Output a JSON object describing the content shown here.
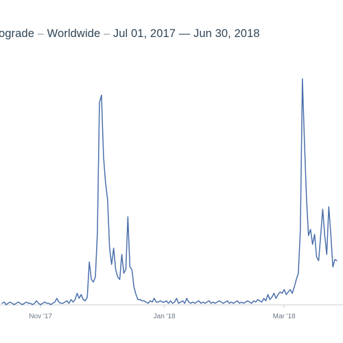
{
  "header": {
    "term": "ograde",
    "sep1": "–",
    "region": "Worldwide",
    "sep2": "–",
    "start": "Jul 01, 2017",
    "dash": "—",
    "end": "Jun 30, 2018"
  },
  "colors": {
    "line": "#4a6fab",
    "axis": "#c9d0d6",
    "title": "#2f4456",
    "tick": "#6b7885"
  },
  "chart_data": {
    "type": "line",
    "title": "ograde – Worldwide – Jul 01, 2017 — Jun 30, 2018",
    "xlabel": "",
    "ylabel": "",
    "grid": false,
    "legend": "none",
    "x_tick_labels": [
      "Nov '17",
      "Jan '18",
      "Mar '18"
    ],
    "x_tick_dates": [
      "2017-11-01",
      "2018-01-01",
      "2018-03-01"
    ],
    "series": [
      {
        "values": [
          [
            "2017-10-13",
            1
          ],
          [
            "2017-10-14",
            2
          ],
          [
            "2017-10-15",
            0
          ],
          [
            "2017-10-16",
            1
          ],
          [
            "2017-10-17",
            2
          ],
          [
            "2017-10-18",
            1
          ],
          [
            "2017-10-19",
            0
          ],
          [
            "2017-10-20",
            1
          ],
          [
            "2017-10-21",
            2
          ],
          [
            "2017-10-22",
            1
          ],
          [
            "2017-10-23",
            0
          ],
          [
            "2017-10-24",
            1
          ],
          [
            "2017-10-25",
            2
          ],
          [
            "2017-10-26",
            1
          ],
          [
            "2017-10-27",
            1
          ],
          [
            "2017-10-28",
            0
          ],
          [
            "2017-10-29",
            1
          ],
          [
            "2017-10-30",
            3
          ],
          [
            "2017-10-31",
            1
          ],
          [
            "2017-11-01",
            0
          ],
          [
            "2017-11-02",
            1
          ],
          [
            "2017-11-03",
            2
          ],
          [
            "2017-11-04",
            1
          ],
          [
            "2017-11-05",
            1
          ],
          [
            "2017-11-06",
            0
          ],
          [
            "2017-11-07",
            1
          ],
          [
            "2017-11-08",
            2
          ],
          [
            "2017-11-09",
            5
          ],
          [
            "2017-11-10",
            2
          ],
          [
            "2017-11-11",
            1
          ],
          [
            "2017-11-12",
            1
          ],
          [
            "2017-11-13",
            2
          ],
          [
            "2017-11-14",
            3
          ],
          [
            "2017-11-15",
            1
          ],
          [
            "2017-11-16",
            4
          ],
          [
            "2017-11-17",
            2
          ],
          [
            "2017-11-18",
            4
          ],
          [
            "2017-11-19",
            9
          ],
          [
            "2017-11-20",
            5
          ],
          [
            "2017-11-21",
            8
          ],
          [
            "2017-11-22",
            4
          ],
          [
            "2017-11-23",
            3
          ],
          [
            "2017-11-24",
            6
          ],
          [
            "2017-11-25",
            34
          ],
          [
            "2017-11-26",
            20
          ],
          [
            "2017-11-27",
            18
          ],
          [
            "2017-11-28",
            22
          ],
          [
            "2017-11-29",
            58
          ],
          [
            "2017-11-30",
            161
          ],
          [
            "2017-12-01",
            167
          ],
          [
            "2017-12-02",
            118
          ],
          [
            "2017-12-03",
            97
          ],
          [
            "2017-12-04",
            84
          ],
          [
            "2017-12-05",
            45
          ],
          [
            "2017-12-06",
            32
          ],
          [
            "2017-12-07",
            45
          ],
          [
            "2017-12-08",
            28
          ],
          [
            "2017-12-09",
            22
          ],
          [
            "2017-12-10",
            20
          ],
          [
            "2017-12-11",
            40
          ],
          [
            "2017-12-12",
            25
          ],
          [
            "2017-12-13",
            28
          ],
          [
            "2017-12-14",
            70
          ],
          [
            "2017-12-15",
            30
          ],
          [
            "2017-12-16",
            28
          ],
          [
            "2017-12-17",
            14
          ],
          [
            "2017-12-18",
            8
          ],
          [
            "2017-12-19",
            4
          ],
          [
            "2017-12-20",
            4
          ],
          [
            "2017-12-21",
            3
          ],
          [
            "2017-12-22",
            3
          ],
          [
            "2017-12-23",
            2
          ],
          [
            "2017-12-24",
            1
          ],
          [
            "2017-12-25",
            3
          ],
          [
            "2017-12-26",
            2
          ],
          [
            "2017-12-27",
            5
          ],
          [
            "2017-12-28",
            2
          ],
          [
            "2017-12-29",
            2
          ],
          [
            "2017-12-30",
            3
          ],
          [
            "2017-12-31",
            2
          ],
          [
            "2018-01-01",
            2
          ],
          [
            "2018-01-02",
            3
          ],
          [
            "2018-01-03",
            1
          ],
          [
            "2018-01-04",
            3
          ],
          [
            "2018-01-05",
            1
          ],
          [
            "2018-01-06",
            2
          ],
          [
            "2018-01-07",
            5
          ],
          [
            "2018-01-08",
            1
          ],
          [
            "2018-01-09",
            2
          ],
          [
            "2018-01-10",
            3
          ],
          [
            "2018-01-11",
            1
          ],
          [
            "2018-01-12",
            5
          ],
          [
            "2018-01-13",
            2
          ],
          [
            "2018-01-14",
            1
          ],
          [
            "2018-01-15",
            2
          ],
          [
            "2018-01-16",
            1
          ],
          [
            "2018-01-17",
            2
          ],
          [
            "2018-01-18",
            3
          ],
          [
            "2018-01-19",
            1
          ],
          [
            "2018-01-20",
            2
          ],
          [
            "2018-01-21",
            1
          ],
          [
            "2018-01-22",
            2
          ],
          [
            "2018-01-23",
            3
          ],
          [
            "2018-01-24",
            1
          ],
          [
            "2018-01-25",
            2
          ],
          [
            "2018-01-26",
            1
          ],
          [
            "2018-01-27",
            2
          ],
          [
            "2018-01-28",
            3
          ],
          [
            "2018-01-29",
            2
          ],
          [
            "2018-01-30",
            1
          ],
          [
            "2018-01-31",
            2
          ],
          [
            "2018-02-01",
            3
          ],
          [
            "2018-02-02",
            1
          ],
          [
            "2018-02-03",
            2
          ],
          [
            "2018-02-04",
            1
          ],
          [
            "2018-02-05",
            2
          ],
          [
            "2018-02-06",
            3
          ],
          [
            "2018-02-07",
            1
          ],
          [
            "2018-02-08",
            2
          ],
          [
            "2018-02-09",
            1
          ],
          [
            "2018-02-10",
            2
          ],
          [
            "2018-02-11",
            3
          ],
          [
            "2018-02-12",
            2
          ],
          [
            "2018-02-13",
            1
          ],
          [
            "2018-02-14",
            3
          ],
          [
            "2018-02-15",
            2
          ],
          [
            "2018-02-16",
            4
          ],
          [
            "2018-02-17",
            3
          ],
          [
            "2018-02-18",
            2
          ],
          [
            "2018-02-19",
            5
          ],
          [
            "2018-02-20",
            3
          ],
          [
            "2018-02-21",
            8
          ],
          [
            "2018-02-22",
            4
          ],
          [
            "2018-02-23",
            6
          ],
          [
            "2018-02-24",
            9
          ],
          [
            "2018-02-25",
            5
          ],
          [
            "2018-02-26",
            8
          ],
          [
            "2018-02-27",
            10
          ],
          [
            "2018-02-28",
            9
          ],
          [
            "2018-03-01",
            12
          ],
          [
            "2018-03-02",
            8
          ],
          [
            "2018-03-03",
            10
          ],
          [
            "2018-03-04",
            12
          ],
          [
            "2018-03-05",
            9
          ],
          [
            "2018-03-06",
            14
          ],
          [
            "2018-03-07",
            20
          ],
          [
            "2018-03-08",
            25
          ],
          [
            "2018-03-09",
            60
          ],
          [
            "2018-03-10",
            180
          ],
          [
            "2018-03-11",
            130
          ],
          [
            "2018-03-12",
            85
          ],
          [
            "2018-03-13",
            55
          ],
          [
            "2018-03-14",
            60
          ],
          [
            "2018-03-15",
            48
          ],
          [
            "2018-03-16",
            56
          ],
          [
            "2018-03-17",
            38
          ],
          [
            "2018-03-18",
            35
          ],
          [
            "2018-03-19",
            55
          ],
          [
            "2018-03-20",
            76
          ],
          [
            "2018-03-21",
            55
          ],
          [
            "2018-03-22",
            40
          ],
          [
            "2018-03-23",
            78
          ],
          [
            "2018-03-24",
            56
          ],
          [
            "2018-03-25",
            30
          ],
          [
            "2018-03-26",
            36
          ],
          [
            "2018-03-27",
            35
          ]
        ]
      }
    ],
    "xlim": [
      "2017-10-12",
      "2018-03-30"
    ],
    "ylim": [
      0,
      210
    ]
  }
}
